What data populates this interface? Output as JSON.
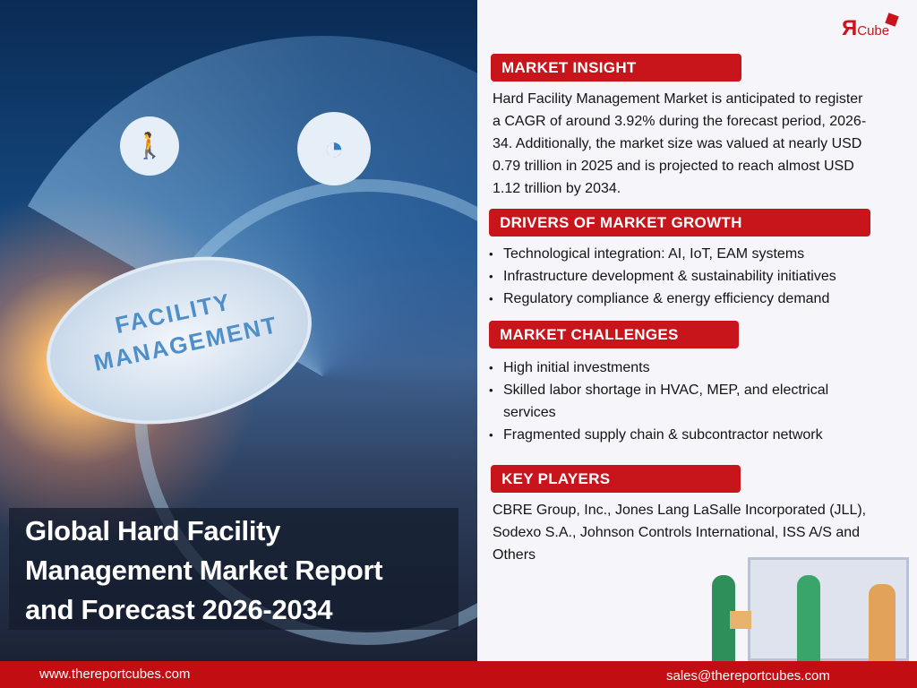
{
  "brand": {
    "logo_text": "ЯCube",
    "accent": "#c8151b"
  },
  "hero": {
    "circle_text_1": "FACILITY",
    "circle_text_2": "MANAGEMENT",
    "title_lines": [
      "Global Hard Facility",
      "Management Market Report",
      "and Forecast 2026-2034"
    ]
  },
  "market_insight": {
    "heading": "MARKET INSIGHT",
    "lines": [
      "Hard Facility Management Market is anticipated to register",
      "a CAGR of around 3.92% during the forecast period, 2026-",
      "34. Additionally, the market size was valued at nearly USD",
      "0.79 trillion in 2025 and is projected to reach almost USD",
      "1.12 trillion by 2034."
    ]
  },
  "drivers": {
    "heading": "DRIVERS OF MARKET GROWTH",
    "items": [
      "Technological integration: AI, IoT, EAM systems",
      "Infrastructure development & sustainability initiatives",
      "Regulatory compliance & energy efficiency demand"
    ]
  },
  "challenges": {
    "heading": "MARKET CHALLENGES",
    "items": [
      "High initial investments",
      "Skilled labor shortage in HVAC, MEP, and electrical services",
      "Fragmented supply chain & subcontractor network"
    ]
  },
  "key_players": {
    "heading": "KEY PLAYERS",
    "lines": [
      "CBRE Group, Inc., Jones Lang LaSalle Incorporated (JLL),",
      "Sodexo S.A., Johnson Controls International, ISS A/S and",
      "Others"
    ]
  },
  "footer": {
    "website": "www.thereportcubes.com",
    "email": "sales@thereportcubes.com"
  }
}
